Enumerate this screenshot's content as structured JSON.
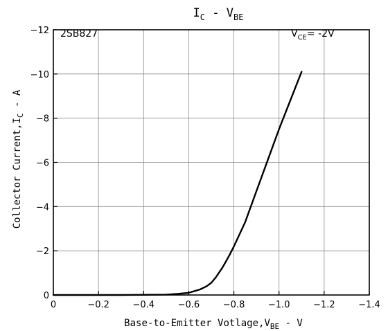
{
  "chart_data": {
    "type": "line",
    "title": {
      "main": "I",
      "sub1": "C",
      "mid": " - V",
      "sub2": "BE"
    },
    "part_number": "2SB827",
    "condition": {
      "main": "V",
      "sub": "CE",
      "rest": "= -2V"
    },
    "xlabel": {
      "main": "Base-to-Emitter Votlage,V",
      "sub": "BE",
      "rest": " - V"
    },
    "ylabel": {
      "main": "Collector Current,I",
      "sub": "C",
      "rest": " - A"
    },
    "xlim": [
      0,
      -1.4
    ],
    "ylim": [
      0,
      -12
    ],
    "x_ticks": [
      0,
      -0.2,
      -0.4,
      -0.6,
      -0.8,
      -1.0,
      -1.2,
      -1.4
    ],
    "x_tick_labels": [
      "0",
      "−0.2",
      "−0.4",
      "−0.6",
      "−0.8",
      "−1.0",
      "−1.2",
      "−1.4"
    ],
    "y_ticks": [
      0,
      -2,
      -4,
      -6,
      -8,
      -10,
      -12
    ],
    "y_tick_labels": [
      "0",
      "−2",
      "−4",
      "−6",
      "−8",
      "−10",
      "−12"
    ],
    "grid": true,
    "series": [
      {
        "x": [
          0,
          -0.3,
          -0.5,
          -0.55,
          -0.6,
          -0.65,
          -0.68,
          -0.7,
          -0.72,
          -0.75,
          -0.78,
          -0.8,
          -0.85,
          -0.9,
          -0.95,
          -1.0,
          -1.05,
          -1.1
        ],
        "y": [
          0,
          0,
          -0.02,
          -0.05,
          -0.1,
          -0.25,
          -0.4,
          -0.55,
          -0.8,
          -1.25,
          -1.8,
          -2.2,
          -3.3,
          -4.7,
          -6.1,
          -7.5,
          -8.8,
          -10.1
        ]
      }
    ]
  }
}
